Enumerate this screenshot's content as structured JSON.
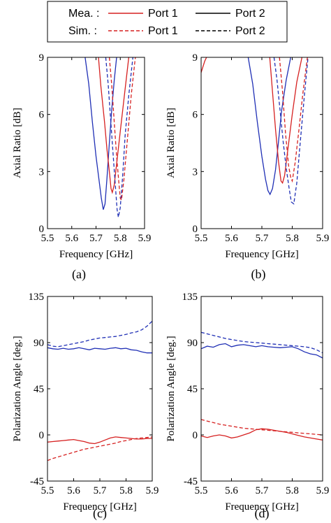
{
  "legend": {
    "rows": [
      {
        "label": "Mea. :",
        "entries": [
          {
            "label": "Port 1",
            "color": "#d62020",
            "dash": "solid"
          },
          {
            "label": "Port 2",
            "color": "#000000",
            "dash": "solid"
          }
        ]
      },
      {
        "label": "Sim. :",
        "entries": [
          {
            "label": "Port 1",
            "color": "#d62020",
            "dash": "dashed"
          },
          {
            "label": "Port 2",
            "color": "#000000",
            "dash": "dashed"
          }
        ]
      }
    ],
    "placement": "top-center"
  },
  "colors": {
    "port1": "#d62020",
    "port2": "#1f2fb5"
  },
  "chart_data": [
    {
      "type": "line",
      "caption": "(a)",
      "xlabel": "Frequency [GHz]",
      "ylabel": "Axial Ratio [dB]",
      "xlim": [
        5.5,
        5.9
      ],
      "ylim": [
        0,
        9
      ],
      "xticks": [
        "5.5",
        "5.6",
        "5.7",
        "5.8",
        "5.9"
      ],
      "yticks": [
        "0",
        "3",
        "6",
        "9"
      ],
      "yticks_values": [
        0,
        3,
        6,
        9
      ],
      "grid": false,
      "series": [
        {
          "port": 2,
          "kind": "measured",
          "x": [
            5.655,
            5.67,
            5.685,
            5.7,
            5.715,
            5.722,
            5.73,
            5.737,
            5.745,
            5.755,
            5.765,
            5.775,
            5.785
          ],
          "y": [
            9,
            7.6,
            5.6,
            3.8,
            2.3,
            1.6,
            1.0,
            1.3,
            2.6,
            4.5,
            6.3,
            7.8,
            9
          ]
        },
        {
          "port": 1,
          "kind": "measured",
          "x": [
            5.71,
            5.72,
            5.735,
            5.745,
            5.755,
            5.762,
            5.767,
            5.775,
            5.785,
            5.8,
            5.815,
            5.835
          ],
          "y": [
            9,
            7.5,
            5.6,
            4.2,
            3.0,
            2.1,
            1.9,
            2.3,
            3.4,
            5.1,
            6.8,
            9
          ]
        },
        {
          "port": 2,
          "kind": "simulated",
          "x": [
            5.74,
            5.75,
            5.76,
            5.77,
            5.78,
            5.787,
            5.792,
            5.8,
            5.81,
            5.82,
            5.835,
            5.852
          ],
          "y": [
            9,
            7.6,
            5.8,
            4.0,
            2.2,
            1.0,
            0.6,
            1.1,
            2.8,
            4.9,
            7.0,
            9
          ]
        },
        {
          "port": 1,
          "kind": "simulated",
          "x": [
            5.755,
            5.765,
            5.775,
            5.785,
            5.795,
            5.8,
            5.805,
            5.815,
            5.83,
            5.845,
            5.862
          ],
          "y": [
            9,
            7.5,
            5.6,
            3.8,
            2.3,
            1.6,
            1.5,
            2.6,
            4.8,
            7.0,
            9
          ]
        }
      ]
    },
    {
      "type": "line",
      "caption": "(b)",
      "xlabel": "Frequency [GHz]",
      "ylabel": "Axial Ratio [dB]",
      "xlim": [
        5.5,
        5.9
      ],
      "ylim": [
        0,
        9
      ],
      "xticks": [
        "5.5",
        "5.6",
        "5.7",
        "5.8",
        "5.9"
      ],
      "yticks": [
        "0",
        "3",
        "6",
        "9"
      ],
      "yticks_values": [
        0,
        3,
        6,
        9
      ],
      "grid": false,
      "series": [
        {
          "port": 1,
          "kind": "measured",
          "x": [
            5.5,
            5.506,
            5.512,
            5.518
          ],
          "y": [
            8.2,
            8.5,
            8.8,
            9
          ]
        },
        {
          "port": 2,
          "kind": "measured",
          "x": [
            5.655,
            5.67,
            5.685,
            5.7,
            5.712,
            5.72,
            5.727,
            5.735,
            5.745,
            5.755,
            5.765,
            5.78,
            5.795
          ],
          "y": [
            9,
            7.6,
            5.6,
            3.8,
            2.6,
            2.0,
            1.8,
            2.1,
            3.1,
            4.6,
            6.2,
            7.8,
            9
          ]
        },
        {
          "port": 1,
          "kind": "measured",
          "x": [
            5.726,
            5.735,
            5.745,
            5.755,
            5.763,
            5.768,
            5.775,
            5.785,
            5.8,
            5.815,
            5.832
          ],
          "y": [
            9,
            7.2,
            5.2,
            3.5,
            2.5,
            2.4,
            2.8,
            4.1,
            6.0,
            7.7,
            9
          ]
        },
        {
          "port": 2,
          "kind": "simulated",
          "x": [
            5.74,
            5.75,
            5.76,
            5.77,
            5.78,
            5.79,
            5.797,
            5.805,
            5.815,
            5.825,
            5.84,
            5.852
          ],
          "y": [
            9,
            7.8,
            6.2,
            4.6,
            3.2,
            2.1,
            1.4,
            1.3,
            2.4,
            4.3,
            7.0,
            9
          ]
        },
        {
          "port": 1,
          "kind": "simulated",
          "x": [
            5.758,
            5.768,
            5.778,
            5.788,
            5.795,
            5.8,
            5.81,
            5.822,
            5.835,
            5.85
          ],
          "y": [
            9,
            7.2,
            5.0,
            3.3,
            2.7,
            2.5,
            3.5,
            5.2,
            7.1,
            9
          ]
        }
      ]
    },
    {
      "type": "line",
      "caption": "(c)",
      "xlabel": "Frequency [GHz]",
      "ylabel": "Polarization Angle [deg.]",
      "xlim": [
        5.5,
        5.9
      ],
      "ylim": [
        -45,
        135
      ],
      "xticks": [
        "5.5",
        "5.6",
        "5.7",
        "5.8",
        "5.9"
      ],
      "yticks": [
        "-45",
        "0",
        "45",
        "90",
        "135"
      ],
      "yticks_values": [
        -45,
        0,
        45,
        90,
        135
      ],
      "grid": false,
      "series": [
        {
          "port": 2,
          "kind": "measured",
          "x": [
            5.5,
            5.52,
            5.54,
            5.56,
            5.58,
            5.6,
            5.62,
            5.64,
            5.66,
            5.68,
            5.7,
            5.72,
            5.74,
            5.76,
            5.78,
            5.8,
            5.82,
            5.84,
            5.86,
            5.88,
            5.9
          ],
          "y": [
            85,
            84,
            83.5,
            84.5,
            83.5,
            84,
            85,
            84,
            83,
            84.5,
            84,
            83.5,
            84.5,
            85,
            84,
            84.5,
            83,
            82.5,
            81,
            80,
            80
          ]
        },
        {
          "port": 2,
          "kind": "simulated",
          "x": [
            5.5,
            5.52,
            5.54,
            5.56,
            5.58,
            5.6,
            5.62,
            5.64,
            5.66,
            5.68,
            5.7,
            5.72,
            5.74,
            5.76,
            5.78,
            5.8,
            5.82,
            5.84,
            5.86,
            5.88,
            5.9
          ],
          "y": [
            88,
            86.5,
            86,
            87,
            88,
            89,
            90,
            91,
            92.5,
            93.5,
            94.5,
            95,
            95.5,
            96,
            97,
            98,
            99.5,
            100.5,
            102.5,
            106,
            111
          ]
        },
        {
          "port": 1,
          "kind": "measured",
          "x": [
            5.5,
            5.52,
            5.54,
            5.56,
            5.58,
            5.6,
            5.62,
            5.64,
            5.66,
            5.68,
            5.7,
            5.72,
            5.74,
            5.76,
            5.78,
            5.8,
            5.82,
            5.84,
            5.86,
            5.88,
            5.9
          ],
          "y": [
            -7,
            -6.5,
            -6,
            -5.5,
            -5,
            -4.5,
            -5.5,
            -6.5,
            -8,
            -8.5,
            -7,
            -5,
            -3,
            -2,
            -2.5,
            -3,
            -3.5,
            -4,
            -4,
            -3.5,
            -3.5
          ]
        },
        {
          "port": 1,
          "kind": "simulated",
          "x": [
            5.5,
            5.52,
            5.54,
            5.56,
            5.58,
            5.6,
            5.62,
            5.64,
            5.66,
            5.68,
            5.7,
            5.72,
            5.74,
            5.76,
            5.78,
            5.8,
            5.82,
            5.84,
            5.86,
            5.88,
            5.9
          ],
          "y": [
            -25,
            -23,
            -21.5,
            -20,
            -18.5,
            -17,
            -15.5,
            -14,
            -13,
            -12,
            -11,
            -10,
            -9,
            -8,
            -6.5,
            -5.5,
            -4.5,
            -3.5,
            -3,
            -2.5,
            -2
          ]
        }
      ]
    },
    {
      "type": "line",
      "caption": "(d)",
      "xlabel": "Frequency [GHz]",
      "ylabel": "Polarization Angle [deg.]",
      "xlim": [
        5.5,
        5.9
      ],
      "ylim": [
        -45,
        135
      ],
      "xticks": [
        "5.5",
        "5.6",
        "5.7",
        "5.8",
        "5.9"
      ],
      "yticks": [
        "-45",
        "0",
        "45",
        "90",
        "135"
      ],
      "yticks_values": [
        -45,
        0,
        45,
        90,
        135
      ],
      "grid": false,
      "series": [
        {
          "port": 2,
          "kind": "measured",
          "x": [
            5.5,
            5.52,
            5.54,
            5.56,
            5.58,
            5.6,
            5.62,
            5.64,
            5.66,
            5.68,
            5.7,
            5.72,
            5.74,
            5.76,
            5.78,
            5.8,
            5.82,
            5.84,
            5.86,
            5.88,
            5.9
          ],
          "y": [
            84,
            86.5,
            85.5,
            88,
            89,
            86,
            87.5,
            88,
            87,
            86,
            87,
            86,
            85.5,
            85,
            85.5,
            86,
            84,
            81,
            79,
            78,
            75
          ]
        },
        {
          "port": 2,
          "kind": "simulated",
          "x": [
            5.5,
            5.52,
            5.54,
            5.56,
            5.58,
            5.6,
            5.62,
            5.64,
            5.66,
            5.68,
            5.7,
            5.72,
            5.74,
            5.76,
            5.78,
            5.8,
            5.82,
            5.84,
            5.86,
            5.88,
            5.9
          ],
          "y": [
            100,
            98.5,
            97,
            95.5,
            94,
            93,
            92,
            91,
            90.5,
            90,
            89.5,
            89,
            88.5,
            88,
            87.5,
            87,
            86.5,
            86,
            85,
            83,
            80
          ]
        },
        {
          "port": 1,
          "kind": "measured",
          "x": [
            5.5,
            5.52,
            5.54,
            5.56,
            5.58,
            5.6,
            5.62,
            5.64,
            5.66,
            5.68,
            5.7,
            5.72,
            5.74,
            5.76,
            5.78,
            5.8,
            5.82,
            5.84,
            5.86,
            5.88,
            5.9
          ],
          "y": [
            -1,
            -2.5,
            -1,
            0,
            -1,
            -3,
            -2,
            0,
            2,
            5,
            6,
            5.5,
            4.5,
            3.5,
            2.5,
            1,
            -0.5,
            -2,
            -3,
            -4,
            -5
          ]
        },
        {
          "port": 1,
          "kind": "simulated",
          "x": [
            5.5,
            5.52,
            5.54,
            5.56,
            5.58,
            5.6,
            5.62,
            5.64,
            5.66,
            5.68,
            5.7,
            5.72,
            5.74,
            5.76,
            5.78,
            5.8,
            5.82,
            5.84,
            5.86,
            5.88,
            5.9
          ],
          "y": [
            15,
            13.5,
            12,
            10.5,
            9.5,
            8.5,
            7.5,
            6.5,
            6,
            5.5,
            5,
            4.5,
            4,
            3.5,
            3,
            2.5,
            2,
            1.5,
            1,
            0.5,
            0
          ]
        }
      ]
    }
  ]
}
